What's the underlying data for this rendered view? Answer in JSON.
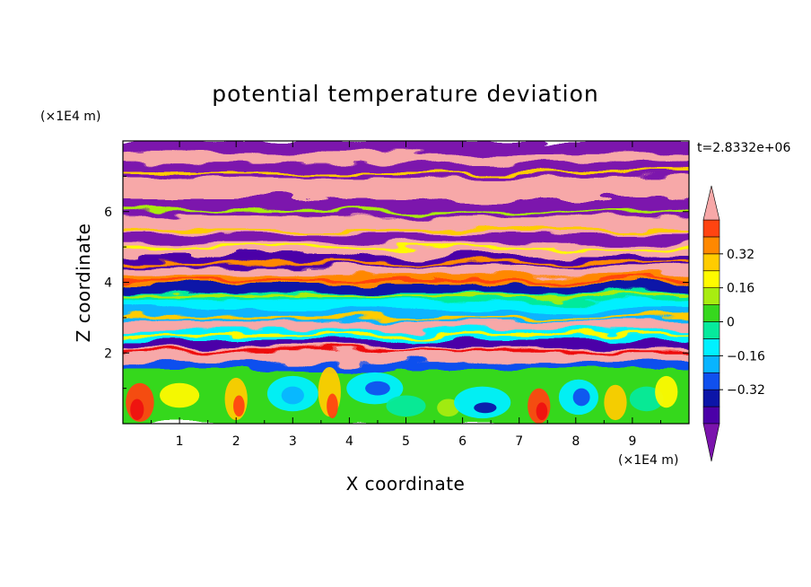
{
  "chart_data": {
    "type": "heatmap",
    "title": "potential temperature deviation",
    "xlabel": "X coordinate",
    "ylabel": "Z coordinate",
    "x_unit": "(×1E4 m)",
    "y_unit": "(×1E4 m)",
    "time_label": "t=2.8332e+06",
    "xlim": [
      0,
      10
    ],
    "ylim": [
      0,
      8
    ],
    "x_ticks": [
      1,
      2,
      3,
      4,
      5,
      6,
      7,
      8,
      9
    ],
    "y_ticks": [
      2,
      4,
      6
    ],
    "colorbar": {
      "levels": [
        -0.48,
        -0.4,
        -0.32,
        -0.24,
        -0.16,
        -0.08,
        0,
        0.08,
        0.16,
        0.24,
        0.32,
        0.4,
        0.48
      ],
      "tick_values": [
        0.32,
        0.16,
        0,
        -0.16,
        -0.32
      ],
      "tick_labels": [
        "0.32",
        "0.16",
        "0",
        "−0.16",
        "−0.32"
      ],
      "colors": [
        "#7b13ad",
        "#4b00a8",
        "#0c15a8",
        "#1050ee",
        "#08b4ff",
        "#00f0ff",
        "#06ea9c",
        "#36d81e",
        "#a8ec10",
        "#fffa00",
        "#ffcc00",
        "#ff8800",
        "#ff4411",
        "#ee1111",
        "#f7a8a8"
      ]
    },
    "field_description": "Layered deviation field: lower layer below z~1.7 dominated by near-zero/negative eddies (cyan, green, yellow, red); middle band z~2-4 alternating positive/negative streaks; upper region z~4-8 alternating strong positive (pink) and strong negative (purple) layers."
  }
}
